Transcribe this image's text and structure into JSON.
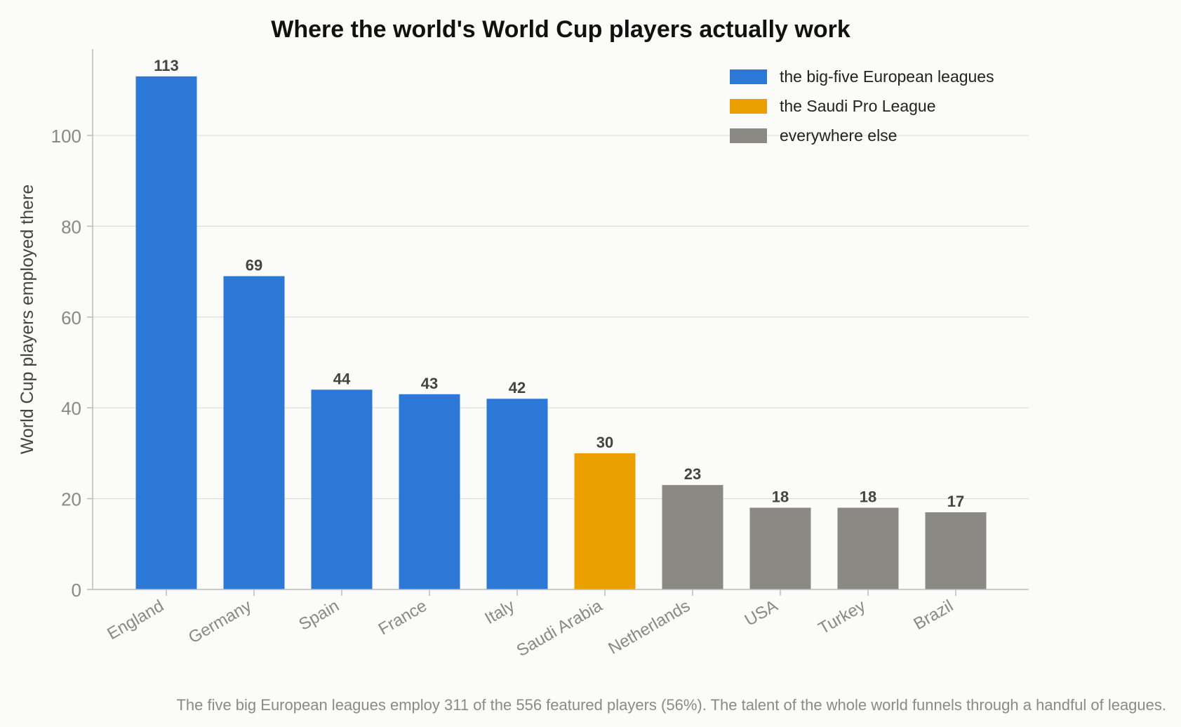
{
  "chart_data": {
    "type": "bar",
    "title": "Where the world's World Cup players actually work",
    "xlabel": "",
    "ylabel": "World Cup players employed there",
    "ylim": [
      0,
      119
    ],
    "yticks": [
      0,
      20,
      40,
      60,
      80,
      100
    ],
    "grid": "horizontal",
    "legend_position": "top-right",
    "categories": [
      "England",
      "Germany",
      "Spain",
      "France",
      "Italy",
      "Saudi Arabia",
      "Netherlands",
      "USA",
      "Turkey",
      "Brazil"
    ],
    "values": [
      113,
      69,
      44,
      43,
      42,
      30,
      23,
      18,
      18,
      17
    ],
    "groups": [
      "big5",
      "big5",
      "big5",
      "big5",
      "big5",
      "saudi",
      "other",
      "other",
      "other",
      "other"
    ],
    "legend": [
      {
        "key": "big5",
        "label": "the big-five European leagues",
        "color": "#2b78d6"
      },
      {
        "key": "saudi",
        "label": "the Saudi Pro League",
        "color": "#eca000"
      },
      {
        "key": "other",
        "label": "everywhere else",
        "color": "#8a8984"
      }
    ],
    "footnote": "The five big European leagues employ 311 of the 556 featured players (56%). The talent of the whole world funnels through a handful of leagues."
  }
}
